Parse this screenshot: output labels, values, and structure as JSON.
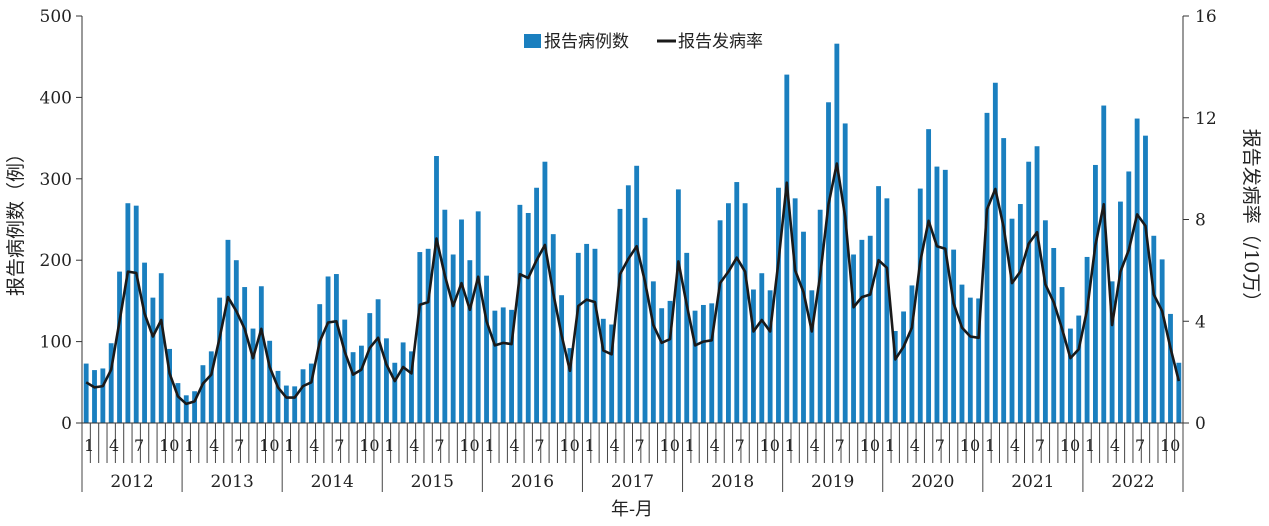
{
  "chart_data": {
    "type": "bar",
    "title": "",
    "xlabel": "年-月",
    "ylabel": "报告病例数（例）",
    "ylabel_right": "报告发病率（/10万）",
    "ylim": [
      0,
      500
    ],
    "ylim_right": [
      0,
      16
    ],
    "yticks": [
      0,
      100,
      200,
      300,
      400,
      500
    ],
    "yticks_right": [
      0,
      4,
      8,
      12,
      16
    ],
    "years": [
      "2012",
      "2013",
      "2014",
      "2015",
      "2016",
      "2017",
      "2018",
      "2019",
      "2020",
      "2021",
      "2022"
    ],
    "month_tick_labels": [
      "1",
      "4",
      "7",
      "10"
    ],
    "legend_position": "top-center",
    "colors": {
      "bar": "#1a7fbf",
      "line": "#1a1a1a"
    },
    "series": [
      {
        "name": "报告病例数",
        "type": "bar",
        "axis": "left",
        "values": [
          73,
          65,
          67,
          98,
          186,
          270,
          267,
          197,
          154,
          184,
          91,
          49,
          34,
          39,
          71,
          88,
          154,
          225,
          200,
          167,
          116,
          168,
          101,
          64,
          46,
          45,
          66,
          73,
          146,
          180,
          183,
          127,
          87,
          95,
          135,
          152,
          104,
          74,
          99,
          88,
          210,
          214,
          328,
          262,
          207,
          250,
          200,
          260,
          181,
          138,
          142,
          139,
          268,
          258,
          289,
          321,
          232,
          157,
          92,
          209,
          220,
          214,
          128,
          121,
          263,
          292,
          316,
          252,
          174,
          141,
          150,
          287,
          209,
          138,
          145,
          147,
          249,
          270,
          296,
          270,
          164,
          184,
          163,
          289,
          428,
          276,
          235,
          163,
          262,
          394,
          466,
          368,
          207,
          225,
          230,
          291,
          276,
          113,
          137,
          169,
          288,
          361,
          315,
          311,
          213,
          170,
          154,
          153,
          381,
          418,
          350,
          251,
          269,
          321,
          340,
          249,
          215,
          167,
          116,
          132,
          204,
          317,
          390,
          174,
          272,
          309,
          374,
          353,
          230,
          201,
          134,
          74
        ]
      },
      {
        "name": "报告发病率",
        "type": "line",
        "axis": "right",
        "values": [
          1.6,
          1.4,
          1.45,
          2.1,
          4.0,
          5.95,
          5.9,
          4.3,
          3.4,
          4.05,
          1.95,
          1.05,
          0.75,
          0.85,
          1.55,
          1.9,
          3.35,
          4.95,
          4.4,
          3.7,
          2.55,
          3.7,
          2.2,
          1.4,
          1.0,
          1.0,
          1.45,
          1.6,
          3.2,
          3.95,
          4.0,
          2.8,
          1.9,
          2.1,
          2.95,
          3.35,
          2.3,
          1.65,
          2.2,
          1.95,
          4.65,
          4.75,
          7.25,
          5.8,
          4.6,
          5.5,
          4.45,
          5.75,
          4.0,
          3.05,
          3.15,
          3.1,
          5.85,
          5.7,
          6.4,
          7.0,
          5.1,
          3.45,
          2.05,
          4.6,
          4.85,
          4.75,
          2.85,
          2.7,
          5.85,
          6.45,
          6.95,
          5.55,
          3.85,
          3.15,
          3.3,
          6.35,
          4.65,
          3.05,
          3.2,
          3.25,
          5.5,
          5.95,
          6.5,
          5.95,
          3.6,
          4.05,
          3.6,
          6.35,
          9.45,
          6.0,
          5.15,
          3.6,
          5.8,
          8.6,
          10.2,
          8.1,
          4.55,
          4.95,
          5.05,
          6.4,
          6.1,
          2.5,
          3.0,
          3.75,
          6.35,
          7.95,
          6.95,
          6.85,
          4.7,
          3.75,
          3.4,
          3.35,
          8.4,
          9.2,
          7.7,
          5.5,
          5.95,
          7.05,
          7.5,
          5.45,
          4.75,
          3.7,
          2.55,
          2.9,
          4.45,
          7.0,
          8.6,
          3.85,
          5.95,
          6.8,
          8.2,
          7.75,
          5.05,
          4.4,
          2.95,
          1.65
        ]
      }
    ]
  }
}
